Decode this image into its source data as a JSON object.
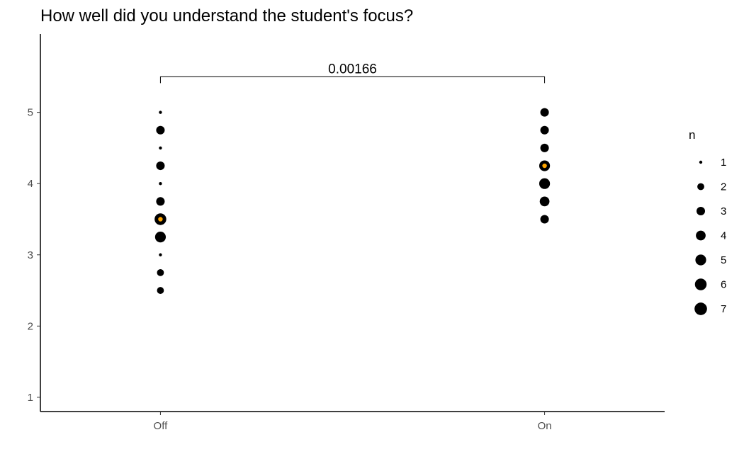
{
  "chart_data": {
    "type": "scatter",
    "title": "How well did you understand the student's focus?",
    "xlabel": "",
    "ylabel": "",
    "categories": [
      "Off",
      "On"
    ],
    "yticks": [
      1,
      2,
      3,
      4,
      5
    ],
    "ylim": [
      0.8,
      6.1
    ],
    "grid": false,
    "point_color": "#000000",
    "mean_color": "#FFA500",
    "points": [
      {
        "x": "Off",
        "y": 5.0,
        "n": 1
      },
      {
        "x": "Off",
        "y": 4.75,
        "n": 3
      },
      {
        "x": "Off",
        "y": 4.5,
        "n": 1
      },
      {
        "x": "Off",
        "y": 4.25,
        "n": 3
      },
      {
        "x": "Off",
        "y": 4.0,
        "n": 1
      },
      {
        "x": "Off",
        "y": 3.75,
        "n": 3
      },
      {
        "x": "Off",
        "y": 3.5,
        "n": 6
      },
      {
        "x": "Off",
        "y": 3.25,
        "n": 5
      },
      {
        "x": "Off",
        "y": 3.0,
        "n": 1
      },
      {
        "x": "Off",
        "y": 2.75,
        "n": 2
      },
      {
        "x": "Off",
        "y": 2.5,
        "n": 2
      },
      {
        "x": "On",
        "y": 5.0,
        "n": 3
      },
      {
        "x": "On",
        "y": 4.75,
        "n": 3
      },
      {
        "x": "On",
        "y": 4.5,
        "n": 3
      },
      {
        "x": "On",
        "y": 4.25,
        "n": 5
      },
      {
        "x": "On",
        "y": 4.0,
        "n": 5
      },
      {
        "x": "On",
        "y": 3.75,
        "n": 4
      },
      {
        "x": "On",
        "y": 3.5,
        "n": 3
      }
    ],
    "means": [
      {
        "x": "Off",
        "y": 3.5
      },
      {
        "x": "On",
        "y": 4.25
      }
    ],
    "annotation": {
      "label": "0.00166",
      "from": "Off",
      "to": "On",
      "y": 5.5
    },
    "legend": {
      "title": "n",
      "placement": "right",
      "items": [
        "1",
        "2",
        "3",
        "4",
        "5",
        "6",
        "7"
      ]
    }
  }
}
